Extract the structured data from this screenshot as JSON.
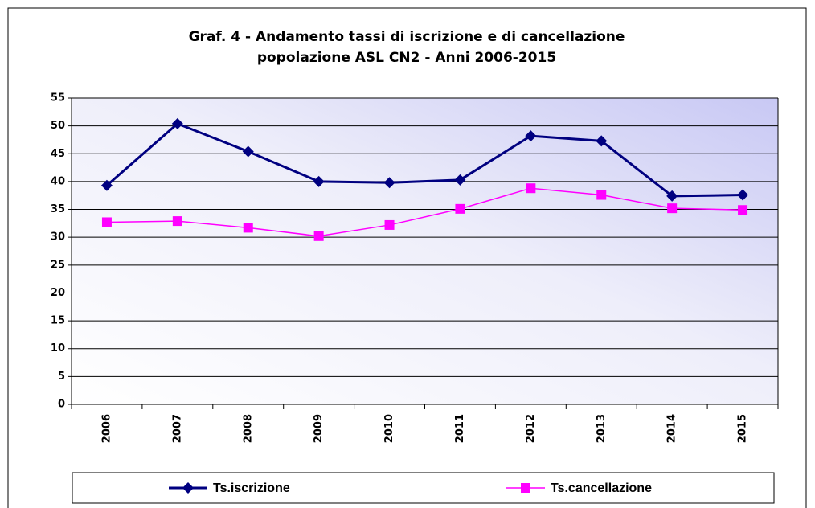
{
  "chart_data": {
    "type": "line",
    "title": [
      "Graf. 4  - Andamento tassi di iscrizione e di cancellazione",
      "popolazione ASL CN2 - Anni 2006-2015"
    ],
    "categories": [
      "2006",
      "2007",
      "2008",
      "2009",
      "2010",
      "2011",
      "2012",
      "2013",
      "2014",
      "2015"
    ],
    "series": [
      {
        "name": "Ts.iscrizione",
        "color": "#000080",
        "marker": "diamond",
        "values": [
          39.3,
          50.4,
          45.4,
          40.0,
          39.8,
          40.3,
          48.2,
          47.3,
          37.4,
          37.6
        ]
      },
      {
        "name": "Ts.cancellazione",
        "color": "#ff00ff",
        "marker": "square",
        "values": [
          32.7,
          32.9,
          31.7,
          30.2,
          32.2,
          35.1,
          38.8,
          37.6,
          35.2,
          34.9
        ]
      }
    ],
    "ylim": [
      0,
      55
    ],
    "yticks": [
      0,
      5,
      10,
      15,
      20,
      25,
      30,
      35,
      40,
      45,
      50,
      55
    ],
    "grid": true,
    "legend": "bottom"
  }
}
